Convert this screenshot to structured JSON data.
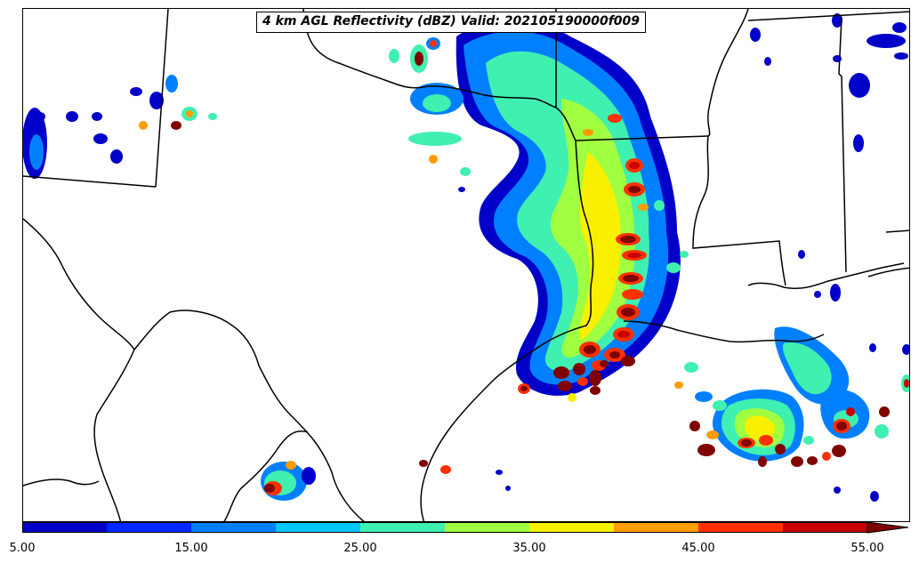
{
  "map": {
    "title": "4 km AGL Reflectivity (dBZ) Valid: 202105190000f009"
  },
  "colorbar": {
    "ticks": [
      "5.00",
      "15.00",
      "25.00",
      "35.00",
      "45.00",
      "55.00"
    ],
    "levels": [
      5,
      10,
      15,
      20,
      25,
      30,
      35,
      40,
      45,
      50,
      55
    ],
    "colors": [
      "#0000c8",
      "#0028ff",
      "#0080ff",
      "#00c8ff",
      "#40f0b0",
      "#a0ff40",
      "#f8f000",
      "#ff9c00",
      "#ff3000",
      "#c80000",
      "#800000"
    ],
    "units": "dBZ"
  }
}
